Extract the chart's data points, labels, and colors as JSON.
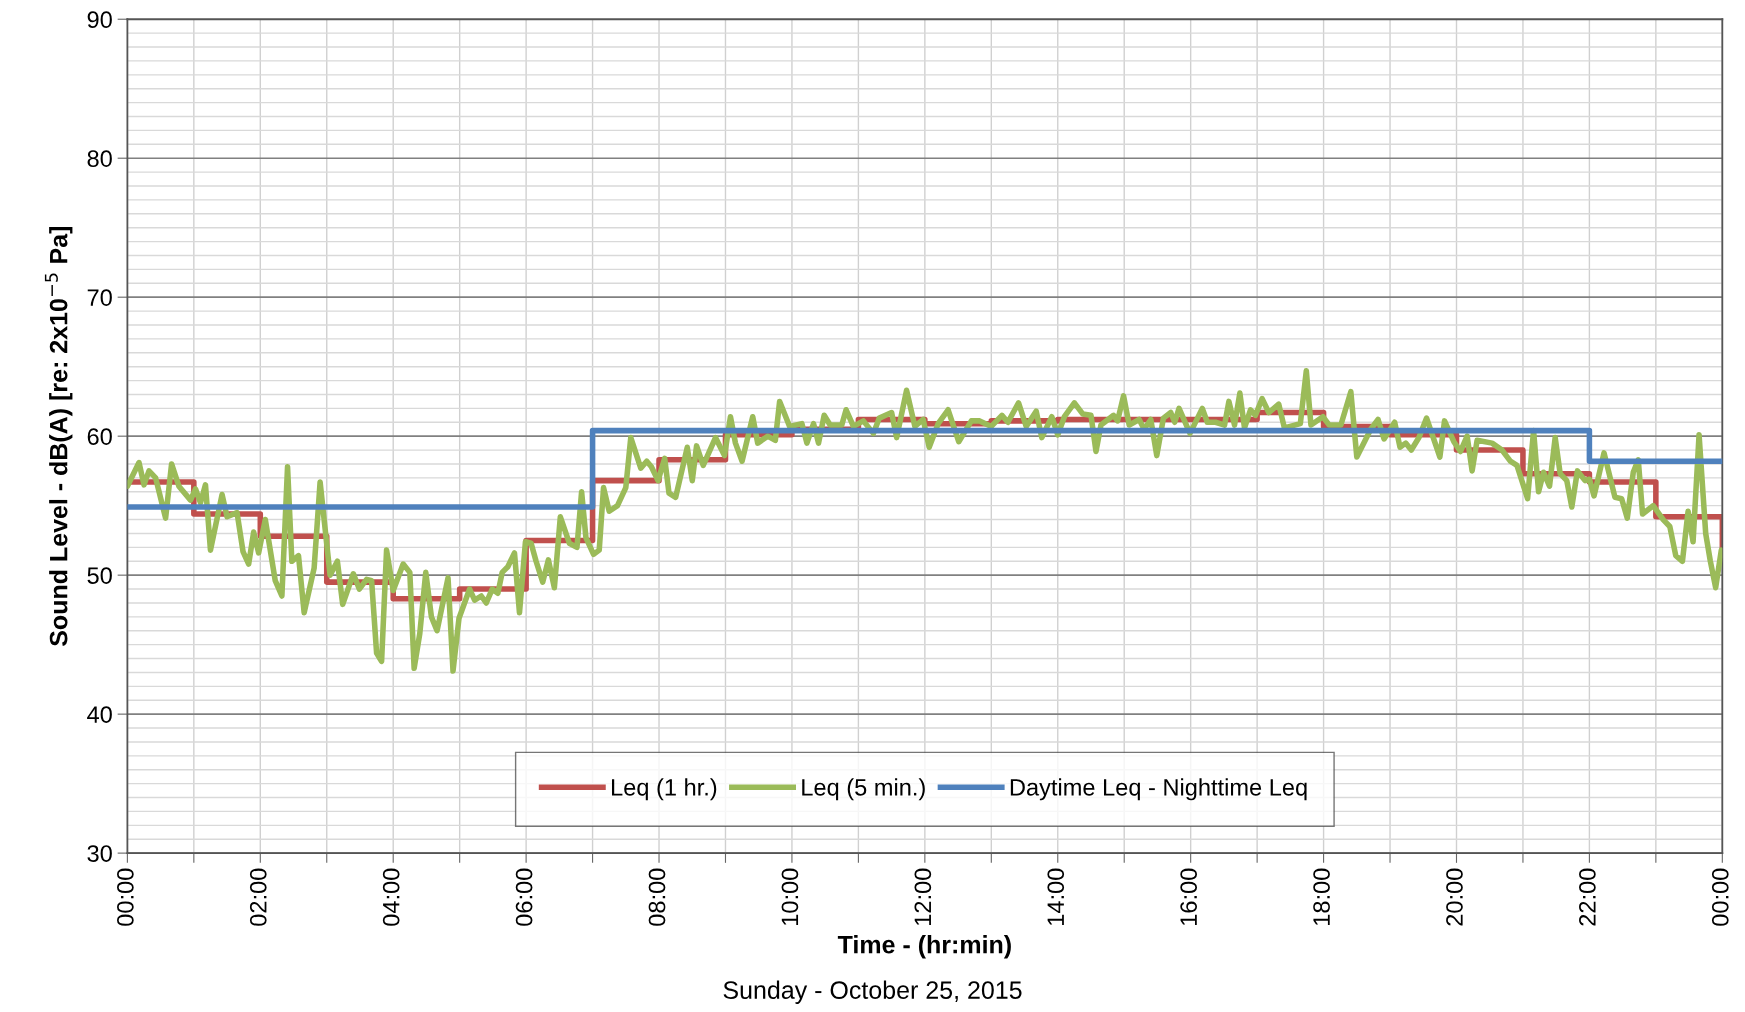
{
  "chart_data": {
    "type": "line",
    "xlabel": "Time - (hr:min)",
    "ylabel": "Sound Level - dB(A) [re: 2x10$^{−5}$ Pa]",
    "annotations": [
      "Sunday - October 25, 2015"
    ],
    "xlim": [
      0,
      24
    ],
    "xticks": [
      {
        "value": 0,
        "label": "00:00"
      },
      {
        "value": 1,
        "label": null
      },
      {
        "value": 2,
        "label": "02:00"
      },
      {
        "value": 3,
        "label": null
      },
      {
        "value": 4,
        "label": "04:00"
      },
      {
        "value": 5,
        "label": null
      },
      {
        "value": 6,
        "label": "06:00"
      },
      {
        "value": 7,
        "label": null
      },
      {
        "value": 8,
        "label": "08:00"
      },
      {
        "value": 9,
        "label": null
      },
      {
        "value": 10,
        "label": "10:00"
      },
      {
        "value": 11,
        "label": null
      },
      {
        "value": 12,
        "label": "12:00"
      },
      {
        "value": 13,
        "label": null
      },
      {
        "value": 14,
        "label": "14:00"
      },
      {
        "value": 15,
        "label": null
      },
      {
        "value": 16,
        "label": "16:00"
      },
      {
        "value": 17,
        "label": null
      },
      {
        "value": 18,
        "label": "18:00"
      },
      {
        "value": 19,
        "label": null
      },
      {
        "value": 20,
        "label": "20:00"
      },
      {
        "value": 21,
        "label": null
      },
      {
        "value": 22,
        "label": "22:00"
      },
      {
        "value": 23,
        "label": null
      },
      {
        "value": 24,
        "label": "00:00"
      }
    ],
    "ylim": [
      30,
      90
    ],
    "yticks": [
      30,
      {
        "value": 31,
        "label": null
      },
      {
        "value": 32,
        "label": null
      },
      {
        "value": 33,
        "label": null
      },
      {
        "value": 34,
        "label": null
      },
      {
        "value": 35,
        "label": null
      },
      {
        "value": 36,
        "label": null
      },
      {
        "value": 37,
        "label": null
      },
      {
        "value": 38,
        "label": null
      },
      {
        "value": 39,
        "label": null
      },
      40,
      {
        "value": 41,
        "label": null
      },
      {
        "value": 42,
        "label": null
      },
      {
        "value": 43,
        "label": null
      },
      {
        "value": 44,
        "label": null
      },
      {
        "value": 45,
        "label": null
      },
      {
        "value": 46,
        "label": null
      },
      {
        "value": 47,
        "label": null
      },
      {
        "value": 48,
        "label": null
      },
      {
        "value": 49,
        "label": null
      },
      50,
      {
        "value": 51,
        "label": null
      },
      {
        "value": 52,
        "label": null
      },
      {
        "value": 53,
        "label": null
      },
      {
        "value": 54,
        "label": null
      },
      {
        "value": 55,
        "label": null
      },
      {
        "value": 56,
        "label": null
      },
      {
        "value": 57,
        "label": null
      },
      {
        "value": 58,
        "label": null
      },
      {
        "value": 59,
        "label": null
      },
      60,
      {
        "value": 61,
        "label": null
      },
      {
        "value": 62,
        "label": null
      },
      {
        "value": 63,
        "label": null
      },
      {
        "value": 64,
        "label": null
      },
      {
        "value": 65,
        "label": null
      },
      {
        "value": 66,
        "label": null
      },
      {
        "value": 67,
        "label": null
      },
      {
        "value": 68,
        "label": null
      },
      {
        "value": 69,
        "label": null
      },
      70,
      {
        "value": 71,
        "label": null
      },
      {
        "value": 72,
        "label": null
      },
      {
        "value": 73,
        "label": null
      },
      {
        "value": 74,
        "label": null
      },
      {
        "value": 75,
        "label": null
      },
      {
        "value": 76,
        "label": null
      },
      {
        "value": 77,
        "label": null
      },
      {
        "value": 78,
        "label": null
      },
      {
        "value": 79,
        "label": null
      },
      80,
      {
        "value": 81,
        "label": null
      },
      {
        "value": 82,
        "label": null
      },
      {
        "value": 83,
        "label": null
      },
      {
        "value": 84,
        "label": null
      },
      {
        "value": 85,
        "label": null
      },
      {
        "value": 86,
        "label": null
      },
      {
        "value": 87,
        "label": null
      },
      {
        "value": 88,
        "label": null
      },
      {
        "value": 89,
        "label": null
      },
      90
    ],
    "grid": true,
    "legend": "bottom",
    "line_style": "solid",
    "marker": "none",
    "series": [
      {
        "name": "Leq (1 hr.)",
        "type": "step",
        "color": "#c0504d",
        "x": [
          0,
          1,
          2,
          3,
          4,
          5,
          6,
          7,
          8,
          9,
          10,
          11,
          12,
          13,
          14,
          15,
          16,
          17,
          18,
          19,
          20,
          21,
          22,
          23,
          24
        ],
        "values": [
          56.7,
          54.4,
          52.8,
          49.5,
          48.3,
          49.0,
          52.5,
          56.8,
          58.3,
          60.1,
          60.5,
          61.2,
          60.9,
          61.1,
          61.2,
          61.2,
          61.2,
          61.7,
          60.7,
          60.1,
          59.0,
          57.3,
          56.7,
          54.2,
          51.8
        ]
      },
      {
        "name": "Leq (5 min.)",
        "color": "#9bbb59",
        "x": [
          0,
          0.175,
          0.25,
          0.325,
          0.425,
          0.575,
          0.665,
          0.775,
          0.95,
          1.025,
          1.1,
          1.175,
          1.25,
          1.425,
          1.5,
          1.65,
          1.74,
          1.825,
          1.9,
          1.975,
          2.075,
          2.225,
          2.325,
          2.41,
          2.475,
          2.575,
          2.66,
          2.81,
          2.9,
          3.05,
          3.16,
          3.24,
          3.4,
          3.49,
          3.6,
          3.675,
          3.75,
          3.825,
          3.9,
          4.0,
          4.15,
          4.25,
          4.315,
          4.4,
          4.49,
          4.575,
          4.66,
          4.825,
          4.9,
          4.99,
          5.15,
          5.225,
          5.325,
          5.4,
          5.49,
          5.575,
          5.64,
          5.725,
          5.825,
          5.9,
          5.99,
          6.075,
          6.15,
          6.25,
          6.335,
          6.425,
          6.515,
          6.65,
          6.765,
          6.835,
          6.9,
          7.015,
          7.1,
          7.165,
          7.25,
          7.375,
          7.5,
          7.575,
          7.725,
          7.815,
          7.885,
          7.985,
          8.085,
          8.15,
          8.25,
          8.425,
          8.5,
          8.565,
          8.665,
          8.85,
          8.985,
          9.075,
          9.15,
          9.25,
          9.41,
          9.485,
          9.635,
          9.75,
          9.815,
          9.965,
          10.15,
          10.225,
          10.325,
          10.4,
          10.485,
          10.575,
          10.75,
          10.815,
          10.925,
          11.075,
          11.225,
          11.315,
          11.5,
          11.575,
          11.725,
          11.85,
          11.975,
          12.065,
          12.2,
          12.35,
          12.51,
          12.7,
          12.825,
          13.0,
          13.16,
          13.25,
          13.41,
          13.525,
          13.675,
          13.76,
          13.91,
          14.0,
          14.1,
          14.25,
          14.375,
          14.5,
          14.575,
          14.65,
          14.84,
          14.9,
          14.99,
          15.075,
          15.225,
          15.3,
          15.4,
          15.49,
          15.59,
          15.7,
          15.76,
          15.825,
          15.99,
          16.175,
          16.25,
          16.375,
          16.51,
          16.575,
          16.66,
          16.74,
          16.81,
          16.9,
          16.975,
          17.075,
          17.175,
          17.325,
          17.41,
          17.65,
          17.74,
          17.81,
          17.99,
          18.085,
          18.26,
          18.41,
          18.5,
          18.71,
          18.82,
          18.91,
          19.07,
          19.15,
          19.235,
          19.32,
          19.435,
          19.55,
          19.75,
          19.82,
          19.96,
          20.06,
          20.16,
          20.235,
          20.31,
          20.535,
          20.685,
          20.81,
          20.91,
          21.07,
          21.16,
          21.235,
          21.31,
          21.4,
          21.485,
          21.56,
          21.66,
          21.735,
          21.82,
          21.935,
          22.0,
          22.07,
          22.22,
          22.385,
          22.485,
          22.57,
          22.66,
          22.735,
          22.8,
          22.96,
          23.11,
          23.21,
          23.3,
          23.4,
          23.485,
          23.56,
          23.65,
          23.75,
          23.82,
          23.9,
          23.985
        ],
        "values": [
          56.4,
          58.1,
          56.5,
          57.5,
          57.0,
          54.1,
          58.0,
          56.4,
          55.4,
          56.2,
          55.2,
          56.5,
          51.8,
          55.8,
          54.2,
          54.5,
          51.7,
          50.8,
          53.1,
          51.6,
          54.0,
          49.6,
          48.5,
          57.8,
          51.0,
          51.4,
          47.3,
          50.5,
          56.7,
          50.0,
          51.0,
          47.9,
          50.1,
          49.0,
          49.7,
          49.6,
          44.4,
          43.8,
          51.8,
          48.9,
          50.8,
          50.2,
          43.3,
          45.8,
          50.2,
          47.0,
          46.0,
          49.8,
          43.1,
          46.9,
          49.0,
          48.2,
          48.5,
          48.0,
          49.0,
          48.7,
          50.2,
          50.6,
          51.6,
          47.3,
          52.4,
          52.3,
          51.0,
          49.5,
          51.1,
          49.1,
          54.2,
          52.3,
          52.0,
          56.0,
          52.7,
          51.5,
          51.8,
          56.3,
          54.6,
          55.0,
          56.3,
          59.9,
          57.7,
          58.2,
          57.8,
          56.8,
          58.4,
          55.9,
          55.6,
          59.2,
          56.8,
          59.3,
          57.9,
          59.9,
          58.6,
          61.4,
          59.5,
          58.2,
          61.4,
          59.5,
          60.0,
          59.7,
          62.5,
          60.7,
          60.9,
          59.5,
          60.9,
          59.5,
          61.5,
          60.8,
          60.8,
          61.9,
          60.7,
          61.1,
          60.2,
          61.3,
          61.7,
          59.9,
          63.3,
          60.7,
          61.2,
          59.2,
          60.9,
          61.9,
          59.6,
          61.1,
          61.1,
          60.7,
          61.5,
          61.0,
          62.4,
          60.7,
          61.8,
          59.9,
          61.4,
          60.1,
          61.4,
          62.4,
          61.6,
          61.5,
          58.9,
          60.8,
          61.5,
          61.1,
          62.9,
          60.8,
          61.2,
          60.5,
          61.2,
          58.6,
          61.3,
          61.7,
          61.0,
          62.0,
          60.2,
          62.0,
          61.0,
          61.0,
          60.8,
          62.5,
          60.8,
          63.1,
          60.6,
          61.9,
          61.5,
          62.7,
          61.7,
          62.3,
          60.6,
          60.9,
          64.7,
          60.8,
          61.4,
          60.8,
          60.8,
          63.2,
          58.5,
          60.5,
          61.2,
          59.8,
          61.0,
          59.2,
          59.5,
          59.0,
          59.9,
          61.3,
          58.5,
          61.1,
          59.6,
          58.9,
          60.0,
          57.5,
          59.7,
          59.5,
          59.0,
          58.2,
          57.9,
          55.5,
          60.4,
          56.0,
          57.4,
          56.4,
          59.9,
          57.3,
          56.8,
          54.9,
          57.5,
          56.8,
          56.9,
          55.7,
          58.8,
          55.6,
          55.5,
          54.1,
          57.4,
          58.3,
          54.4,
          55.0,
          54.0,
          53.5,
          51.4,
          51.0,
          54.6,
          52.4,
          60.1,
          53.0,
          51.0,
          49.1,
          51.8
        ]
      },
      {
        "name": "Daytime Leq - Nighttime Leq",
        "type": "step",
        "color": "#4f81bd",
        "x": [
          0,
          7,
          22,
          24
        ],
        "values": [
          54.9,
          60.4,
          58.2,
          58.2
        ]
      }
    ]
  }
}
